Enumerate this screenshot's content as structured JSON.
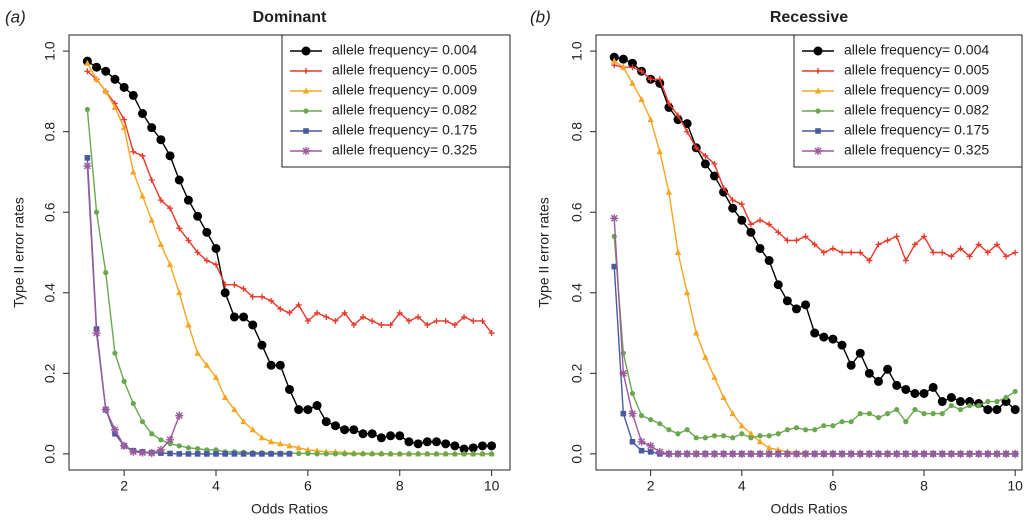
{
  "chart_data": [
    {
      "type": "line",
      "panel_label": "(a)",
      "title": "Dominant",
      "x_label": "Odds Ratios",
      "y_label": "Type II error rates",
      "x": [
        1.2,
        1.4,
        1.6,
        1.8,
        2.0,
        2.2,
        2.4,
        2.6,
        2.8,
        3.0,
        3.2,
        3.4,
        3.6,
        3.8,
        4.0,
        4.2,
        4.4,
        4.6,
        4.8,
        5.0,
        5.2,
        5.4,
        5.6,
        5.8,
        6.0,
        6.2,
        6.4,
        6.6,
        6.8,
        7.0,
        7.2,
        7.4,
        7.6,
        7.8,
        8.0,
        8.2,
        8.4,
        8.6,
        8.8,
        9.0,
        9.2,
        9.4,
        9.6,
        9.8,
        10
      ],
      "series": [
        {
          "name": "allele frequency= 0.004",
          "color": "#000000",
          "marker": "circle",
          "values": [
            0.975,
            0.96,
            0.95,
            0.93,
            0.91,
            0.89,
            0.845,
            0.81,
            0.78,
            0.74,
            0.68,
            0.63,
            0.59,
            0.55,
            0.51,
            0.4,
            0.34,
            0.34,
            0.32,
            0.27,
            0.22,
            0.22,
            0.16,
            0.11,
            0.11,
            0.12,
            0.08,
            0.07,
            0.06,
            0.06,
            0.05,
            0.05,
            0.04,
            0.045,
            0.045,
            0.03,
            0.025,
            0.03,
            0.03,
            0.025,
            0.02,
            0.012,
            0.015,
            0.02,
            0.02
          ]
        },
        {
          "name": "allele frequency= 0.005",
          "color": "#e8392b",
          "marker": "plus",
          "values": [
            0.95,
            0.93,
            0.9,
            0.87,
            0.83,
            0.75,
            0.74,
            0.68,
            0.63,
            0.61,
            0.56,
            0.53,
            0.5,
            0.48,
            0.47,
            0.42,
            0.42,
            0.41,
            0.39,
            0.39,
            0.38,
            0.36,
            0.35,
            0.37,
            0.33,
            0.35,
            0.34,
            0.33,
            0.35,
            0.32,
            0.34,
            0.33,
            0.32,
            0.32,
            0.35,
            0.33,
            0.34,
            0.32,
            0.33,
            0.33,
            0.32,
            0.34,
            0.33,
            0.33,
            0.3
          ]
        },
        {
          "name": "allele frequency= 0.009",
          "color": "#f5a623",
          "marker": "triangle",
          "values": [
            0.97,
            0.93,
            0.9,
            0.86,
            0.81,
            0.7,
            0.64,
            0.58,
            0.52,
            0.47,
            0.4,
            0.32,
            0.25,
            0.22,
            0.19,
            0.14,
            0.11,
            0.08,
            0.06,
            0.04,
            0.03,
            0.025,
            0.02,
            0.015,
            0.01,
            0.008,
            0.005,
            0.005,
            0.003,
            0.002,
            0.002,
            0.001,
            0.001,
            0,
            0,
            0,
            0,
            0,
            0,
            0,
            0,
            0,
            0,
            0,
            0
          ]
        },
        {
          "name": "allele frequency= 0.082",
          "color": "#6aa84f",
          "marker": "dot",
          "values": [
            0.855,
            0.6,
            0.45,
            0.25,
            0.18,
            0.125,
            0.08,
            0.05,
            0.035,
            0.025,
            0.02,
            0.015,
            0.013,
            0.01,
            0.01,
            0.005,
            0.005,
            0.004,
            0.003,
            0.003,
            0.002,
            0.002,
            0.002,
            0.001,
            0.001,
            0,
            0,
            0,
            0,
            0,
            0,
            0,
            0,
            0,
            0,
            0,
            0,
            0,
            0,
            0,
            0,
            0,
            0,
            0,
            0
          ]
        },
        {
          "name": "allele frequency= 0.175",
          "color": "#4a5aa0",
          "marker": "square",
          "values": [
            0.735,
            0.31,
            0.11,
            0.05,
            0.02,
            0.008,
            0.005,
            0.003,
            0.002,
            0.001,
            0,
            0,
            0,
            0,
            0,
            0,
            0,
            0,
            0,
            0,
            0,
            0,
            0,
            null,
            null,
            null,
            null,
            null,
            null,
            null,
            null,
            null,
            null,
            null,
            null,
            null,
            null,
            null,
            null,
            null,
            null,
            null,
            null,
            null,
            null
          ]
        },
        {
          "name": "allele frequency= 0.325",
          "color": "#9b5c9b",
          "marker": "asterisk",
          "values": [
            0.715,
            0.3,
            0.11,
            0.06,
            0.02,
            0.005,
            0.003,
            0.002,
            0.01,
            0.035,
            0.095,
            null,
            null,
            null,
            null,
            null,
            null,
            null,
            null,
            null,
            null,
            null,
            null,
            null,
            null,
            null,
            null,
            null,
            null,
            null,
            null,
            null,
            null,
            null,
            null,
            null,
            null,
            null,
            null,
            null,
            null,
            null,
            null,
            null,
            null
          ]
        }
      ],
      "xlim": [
        0.8,
        10.4
      ],
      "ylim": [
        -0.04,
        1.04
      ],
      "xticks": [
        2,
        4,
        6,
        8,
        10
      ],
      "yticks": [
        {
          "value": 0,
          "label": "0.0"
        },
        {
          "value": 0.2,
          "label": "0.2"
        },
        {
          "value": 0.4,
          "label": "0.4"
        },
        {
          "value": 0.6,
          "label": "0.6"
        },
        {
          "value": 0.8,
          "label": "0.8"
        },
        {
          "value": 1,
          "label": "1.0"
        }
      ],
      "legend": "upper right"
    },
    {
      "type": "line",
      "panel_label": "(b)",
      "title": "Recessive",
      "x_label": "Odds Ratios",
      "y_label": "Type II error rates",
      "x": [
        1.2,
        1.4,
        1.6,
        1.8,
        2.0,
        2.2,
        2.4,
        2.6,
        2.8,
        3.0,
        3.2,
        3.4,
        3.6,
        3.8,
        4.0,
        4.2,
        4.4,
        4.6,
        4.8,
        5.0,
        5.2,
        5.4,
        5.6,
        5.8,
        6.0,
        6.2,
        6.4,
        6.6,
        6.8,
        7.0,
        7.2,
        7.4,
        7.6,
        7.8,
        8.0,
        8.2,
        8.4,
        8.6,
        8.8,
        9.0,
        9.2,
        9.4,
        9.6,
        9.8,
        10
      ],
      "series": [
        {
          "name": "allele frequency= 0.004",
          "color": "#000000",
          "marker": "circle",
          "values": [
            0.985,
            0.98,
            0.97,
            0.95,
            0.93,
            0.92,
            0.86,
            0.83,
            0.82,
            0.76,
            0.72,
            0.69,
            0.65,
            0.61,
            0.58,
            0.55,
            0.51,
            0.48,
            0.42,
            0.38,
            0.36,
            0.37,
            0.3,
            0.29,
            0.285,
            0.27,
            0.22,
            0.25,
            0.2,
            0.18,
            0.21,
            0.17,
            0.16,
            0.15,
            0.15,
            0.165,
            0.13,
            0.14,
            0.13,
            0.13,
            0.125,
            0.11,
            0.11,
            0.13,
            0.11
          ]
        },
        {
          "name": "allele frequency= 0.005",
          "color": "#e8392b",
          "marker": "plus",
          "values": [
            0.965,
            0.96,
            0.96,
            0.95,
            0.93,
            0.93,
            0.87,
            0.84,
            0.8,
            0.76,
            0.74,
            0.72,
            0.66,
            0.63,
            0.62,
            0.57,
            0.58,
            0.57,
            0.55,
            0.53,
            0.53,
            0.54,
            0.52,
            0.5,
            0.51,
            0.5,
            0.5,
            0.5,
            0.48,
            0.52,
            0.53,
            0.54,
            0.48,
            0.52,
            0.54,
            0.5,
            0.5,
            0.49,
            0.51,
            0.49,
            0.52,
            0.5,
            0.52,
            0.49,
            0.5
          ]
        },
        {
          "name": "allele frequency= 0.009",
          "color": "#f5a623",
          "marker": "triangle",
          "values": [
            0.975,
            0.96,
            0.92,
            0.88,
            0.83,
            0.75,
            0.65,
            0.5,
            0.4,
            0.3,
            0.24,
            0.19,
            0.14,
            0.1,
            0.07,
            0.05,
            0.03,
            0.015,
            0.01,
            0.005,
            0.003,
            0.002,
            0,
            0,
            0,
            0,
            0,
            0,
            0,
            0,
            0,
            0,
            0,
            0,
            0,
            0,
            0,
            0,
            0,
            0,
            0,
            0,
            0,
            0,
            0
          ]
        },
        {
          "name": "allele frequency= 0.082",
          "color": "#6aa84f",
          "marker": "dot",
          "values": [
            0.54,
            0.25,
            0.15,
            0.095,
            0.085,
            0.075,
            0.06,
            0.05,
            0.06,
            0.04,
            0.04,
            0.045,
            0.045,
            0.04,
            0.05,
            0.04,
            0.045,
            0.045,
            0.05,
            0.06,
            0.065,
            0.06,
            0.06,
            0.07,
            0.07,
            0.08,
            0.08,
            0.1,
            0.1,
            0.09,
            0.1,
            0.11,
            0.08,
            0.11,
            0.1,
            0.1,
            0.1,
            0.12,
            0.11,
            0.12,
            0.12,
            0.13,
            0.13,
            0.14,
            0.155
          ]
        },
        {
          "name": "allele frequency= 0.175",
          "color": "#4a5aa0",
          "marker": "square",
          "values": [
            0.465,
            0.1,
            0.03,
            0.008,
            0.005,
            0,
            0,
            0,
            0,
            0,
            0,
            0,
            0,
            0,
            0,
            0,
            0,
            0,
            0,
            0,
            0,
            0,
            0,
            0,
            0,
            0,
            0,
            0,
            0,
            0,
            0,
            0,
            0,
            0,
            0,
            0,
            0,
            0,
            0,
            0,
            0,
            0,
            0,
            0,
            0
          ]
        },
        {
          "name": "allele frequency= 0.325",
          "color": "#9b5c9b",
          "marker": "asterisk",
          "values": [
            0.585,
            0.2,
            0.1,
            0.03,
            0.02,
            0.005,
            0,
            0,
            0,
            0,
            0,
            0,
            0,
            0,
            0,
            0,
            0,
            0,
            0,
            0,
            0,
            0,
            0,
            0,
            0,
            0,
            0,
            0,
            0,
            0,
            0,
            0,
            0,
            0,
            0,
            0,
            0,
            0,
            0,
            0,
            0,
            0,
            0,
            0,
            0
          ]
        }
      ],
      "xlim": [
        0.8,
        10.15
      ],
      "ylim": [
        -0.04,
        1.04
      ],
      "xticks": [
        2,
        4,
        6,
        8,
        10
      ],
      "yticks": [
        {
          "value": 0,
          "label": "0.0"
        },
        {
          "value": 0.2,
          "label": "0.2"
        },
        {
          "value": 0.4,
          "label": "0.4"
        },
        {
          "value": 0.6,
          "label": "0.6"
        },
        {
          "value": 0.8,
          "label": "0.8"
        },
        {
          "value": 1,
          "label": "1.0"
        }
      ],
      "legend": "upper right"
    }
  ]
}
